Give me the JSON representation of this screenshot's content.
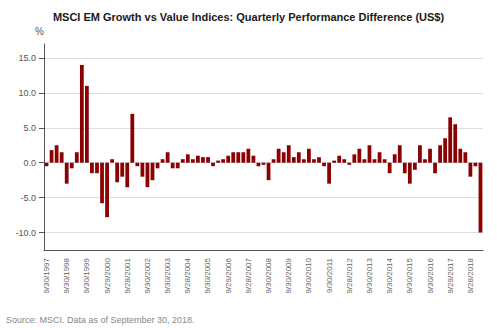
{
  "chart_data": {
    "type": "bar",
    "title": "MSCI EM Growth vs Value Indices: Quarterly Performance Difference (US$)",
    "ylabel": "%",
    "annotations": [
      "Source: MSCI. Data as of September 30, 2018."
    ],
    "color": "#8B0000",
    "grid": true,
    "ylim": [
      -12.5,
      17.0
    ],
    "yticks": [
      {
        "value": -10.0,
        "label": "-10.0"
      },
      {
        "value": -5.0,
        "label": "-5.0"
      },
      {
        "value": 0.0,
        "label": "0.0"
      },
      {
        "value": 5.0,
        "label": "5.0"
      },
      {
        "value": 10.0,
        "label": "10.0"
      },
      {
        "value": 15.0,
        "label": "15.0"
      }
    ],
    "categories": [
      "9/30/1997",
      null,
      null,
      null,
      "9/30/1998",
      null,
      null,
      null,
      "9/30/1999",
      null,
      null,
      null,
      "9/29/2000",
      null,
      null,
      null,
      "9/28/2001",
      null,
      null,
      null,
      "9/30/2002",
      null,
      null,
      null,
      "9/30/2003",
      null,
      null,
      null,
      "9/28/2004",
      null,
      null,
      null,
      "9/30/2005",
      null,
      null,
      null,
      "9/29/2006",
      null,
      null,
      null,
      "9/28/2007",
      null,
      null,
      null,
      "9/30/2008",
      null,
      null,
      null,
      "9/30/2009",
      null,
      null,
      null,
      "9/30/2010",
      null,
      null,
      null,
      "9/30/2011",
      null,
      null,
      null,
      "9/28/2012",
      null,
      null,
      null,
      "9/30/2013",
      null,
      null,
      null,
      "9/30/2014",
      null,
      null,
      null,
      "9/30/2015",
      null,
      null,
      null,
      "9/30/2016",
      null,
      null,
      null,
      "9/29/2017",
      null,
      null,
      null,
      "9/28/2018",
      null,
      null
    ],
    "values": [
      -0.5,
      1.8,
      2.5,
      1.5,
      -3.0,
      -0.8,
      1.5,
      14.0,
      11.0,
      -1.5,
      -1.5,
      -5.8,
      -7.8,
      0.5,
      -2.8,
      -2.0,
      -3.5,
      7.0,
      -0.5,
      -2.0,
      -3.5,
      -2.5,
      -0.8,
      0.5,
      1.5,
      -0.8,
      -0.8,
      0.5,
      1.2,
      0.5,
      1.0,
      0.8,
      0.8,
      -0.5,
      0.3,
      0.5,
      1.0,
      1.5,
      1.5,
      1.5,
      2.0,
      1.0,
      -0.5,
      -0.3,
      -2.5,
      0.5,
      2.0,
      1.5,
      2.5,
      0.8,
      1.5,
      0.5,
      2.0,
      0.5,
      0.8,
      -0.5,
      -3.0,
      0.3,
      1.0,
      0.5,
      -0.3,
      1.2,
      2.0,
      0.5,
      2.5,
      0.5,
      1.5,
      0.5,
      -1.5,
      1.2,
      2.5,
      -1.5,
      -3.0,
      -1.0,
      2.5,
      0.5,
      2.0,
      -1.5,
      2.5,
      3.5,
      6.5,
      5.5,
      2.0,
      1.5,
      -2.0,
      -0.5,
      -10.0
    ]
  }
}
